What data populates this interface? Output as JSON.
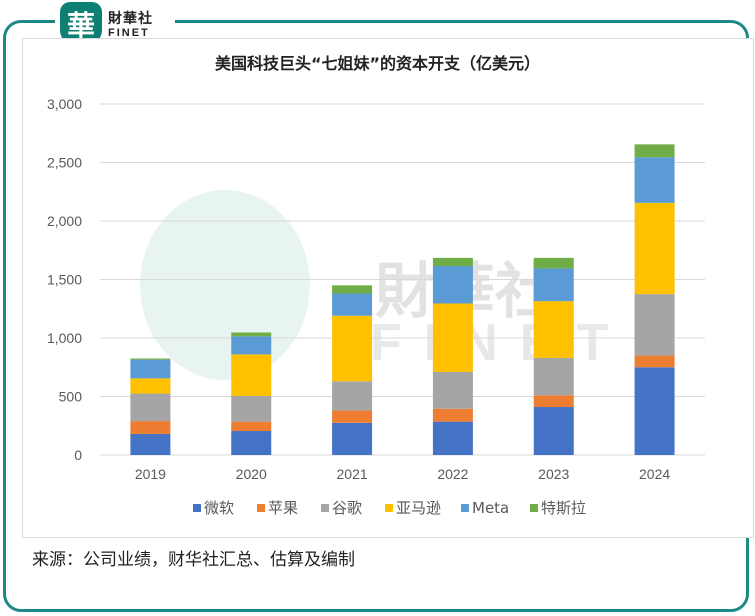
{
  "brand": {
    "logo_glyph": "華",
    "name_cn": "財華社",
    "name_en": "FINET"
  },
  "watermark": {
    "cn": "財華社",
    "en": "FINET"
  },
  "source_note": "来源：公司业绩，财华社汇总、估算及编制",
  "colors": {
    "frame": "#1a8a83",
    "微软": "#4472c4",
    "苹果": "#ed7d31",
    "谷歌": "#a5a5a5",
    "亚马逊": "#ffc000",
    "Meta": "#5b9bd5",
    "特斯拉": "#70ad47"
  },
  "chart_data": {
    "type": "bar",
    "stacked": true,
    "title": "美国科技巨头“七姐妹”的资本开支（亿美元）",
    "xlabel": "",
    "ylabel": "",
    "categories": [
      "2019",
      "2020",
      "2021",
      "2022",
      "2023",
      "2024"
    ],
    "series": [
      {
        "name": "微软",
        "values": [
          180,
          205,
          275,
          285,
          410,
          750
        ]
      },
      {
        "name": "苹果",
        "values": [
          110,
          80,
          105,
          110,
          100,
          100
        ]
      },
      {
        "name": "谷歌",
        "values": [
          235,
          220,
          250,
          315,
          320,
          525
        ]
      },
      {
        "name": "亚马逊",
        "values": [
          130,
          355,
          560,
          585,
          485,
          780
        ]
      },
      {
        "name": "Meta",
        "values": [
          160,
          155,
          190,
          320,
          280,
          390
        ]
      },
      {
        "name": "特斯拉",
        "values": [
          10,
          32,
          70,
          70,
          90,
          110
        ]
      }
    ],
    "ylim": [
      0,
      3000
    ],
    "yticks": [
      0,
      500,
      1000,
      1500,
      2000,
      2500,
      3000
    ],
    "ytick_labels": [
      "0",
      "500",
      "1,000",
      "1,500",
      "2,000",
      "2,500",
      "3,000"
    ],
    "grid": true,
    "legend": "bottom"
  }
}
